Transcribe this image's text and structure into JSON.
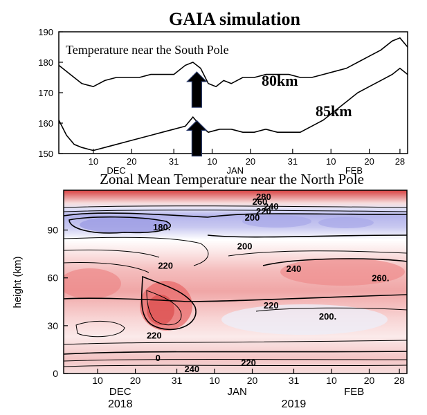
{
  "figure_title": "GAIA simulation",
  "colors": {
    "axis": "#000000",
    "warm": "#e04848",
    "cool": "#5a5ad8",
    "arrow": "#000000",
    "arrow_edge": "#2a3a6a"
  },
  "chart_data": [
    {
      "type": "line",
      "title": "",
      "annotation": "Temperature near the South Pole",
      "xlabel": "",
      "ylabel": "",
      "xlim": [
        0,
        91
      ],
      "ylim": [
        150,
        190
      ],
      "yticks": [
        150,
        160,
        170,
        180,
        190
      ],
      "xticks": [
        {
          "x": 9,
          "label": "10"
        },
        {
          "x": 19,
          "label": "20"
        },
        {
          "x": 30,
          "label": "31"
        },
        {
          "x": 40,
          "label": "10"
        },
        {
          "x": 50,
          "label": "20"
        },
        {
          "x": 61,
          "label": "31"
        },
        {
          "x": 71,
          "label": "10"
        },
        {
          "x": 81,
          "label": "20"
        },
        {
          "x": 89,
          "label": "28"
        }
      ],
      "month_labels": [
        {
          "x": 15,
          "label": "DEC"
        },
        {
          "x": 46,
          "label": "JAN"
        },
        {
          "x": 77,
          "label": "FEB"
        }
      ],
      "series": [
        {
          "name": "80km",
          "x": [
            0,
            3,
            6,
            9,
            12,
            15,
            18,
            21,
            24,
            27,
            30,
            33,
            35,
            37,
            39,
            41,
            43,
            45,
            48,
            51,
            54,
            57,
            60,
            63,
            66,
            69,
            72,
            75,
            78,
            81,
            84,
            87,
            89,
            91
          ],
          "y": [
            179,
            176,
            173,
            172,
            174,
            175,
            175,
            175,
            176,
            176,
            176,
            179,
            180,
            178,
            173,
            172,
            174,
            173,
            175,
            175,
            176,
            176,
            176,
            175,
            175,
            176,
            177,
            178,
            180,
            182,
            184,
            187,
            188,
            185
          ]
        },
        {
          "name": "85km",
          "x": [
            0,
            2,
            4,
            6,
            9,
            12,
            15,
            18,
            21,
            24,
            27,
            30,
            33,
            35,
            37,
            39,
            42,
            45,
            48,
            51,
            54,
            57,
            60,
            63,
            66,
            69,
            72,
            75,
            78,
            81,
            84,
            87,
            89,
            91
          ],
          "y": [
            161,
            156,
            153,
            152,
            151,
            152,
            153,
            154,
            155,
            156,
            157,
            158,
            159,
            162,
            159,
            157,
            158,
            158,
            157,
            157,
            158,
            157,
            157,
            157,
            159,
            161,
            164,
            167,
            170,
            172,
            174,
            176,
            178,
            176
          ]
        }
      ],
      "arrows_at_x": 36
    },
    {
      "type": "heatmap",
      "title": "Zonal Mean Temperature near the North Pole",
      "xlabel": "",
      "ylabel": "height (km)",
      "xlim": [
        0,
        91
      ],
      "ylim": [
        0,
        115
      ],
      "yticks": [
        0,
        30,
        60,
        90
      ],
      "xticks": [
        {
          "x": 9,
          "label": "10"
        },
        {
          "x": 19,
          "label": "20"
        },
        {
          "x": 30,
          "label": "31"
        },
        {
          "x": 40,
          "label": "10"
        },
        {
          "x": 50,
          "label": "20"
        },
        {
          "x": 61,
          "label": "31"
        },
        {
          "x": 71,
          "label": "10"
        },
        {
          "x": 81,
          "label": "20"
        },
        {
          "x": 89,
          "label": "28"
        }
      ],
      "month_labels": [
        {
          "x": 15,
          "label": "DEC"
        },
        {
          "x": 46,
          "label": "JAN"
        },
        {
          "x": 77,
          "label": "FEB"
        }
      ],
      "year_labels": [
        {
          "x": 15,
          "label": "2018"
        },
        {
          "x": 61,
          "label": "2019"
        }
      ],
      "contour_labels": [
        {
          "x": 53,
          "y": 111,
          "text": "280"
        },
        {
          "x": 52,
          "y": 108,
          "text": "260"
        },
        {
          "x": 55,
          "y": 105,
          "text": "240"
        },
        {
          "x": 53,
          "y": 102,
          "text": "220"
        },
        {
          "x": 50,
          "y": 98,
          "text": "200"
        },
        {
          "x": 26,
          "y": 92,
          "text": "180."
        },
        {
          "x": 48,
          "y": 80,
          "text": "200"
        },
        {
          "x": 27,
          "y": 68,
          "text": "220"
        },
        {
          "x": 61,
          "y": 66,
          "text": "240"
        },
        {
          "x": 84,
          "y": 60,
          "text": "260."
        },
        {
          "x": 55,
          "y": 43,
          "text": "220"
        },
        {
          "x": 70,
          "y": 36,
          "text": "200."
        },
        {
          "x": 24,
          "y": 24,
          "text": "220"
        },
        {
          "x": 25,
          "y": 10,
          "text": "0"
        },
        {
          "x": 49,
          "y": 7,
          "text": "220"
        },
        {
          "x": 34,
          "y": 3,
          "text": "240"
        }
      ]
    }
  ]
}
